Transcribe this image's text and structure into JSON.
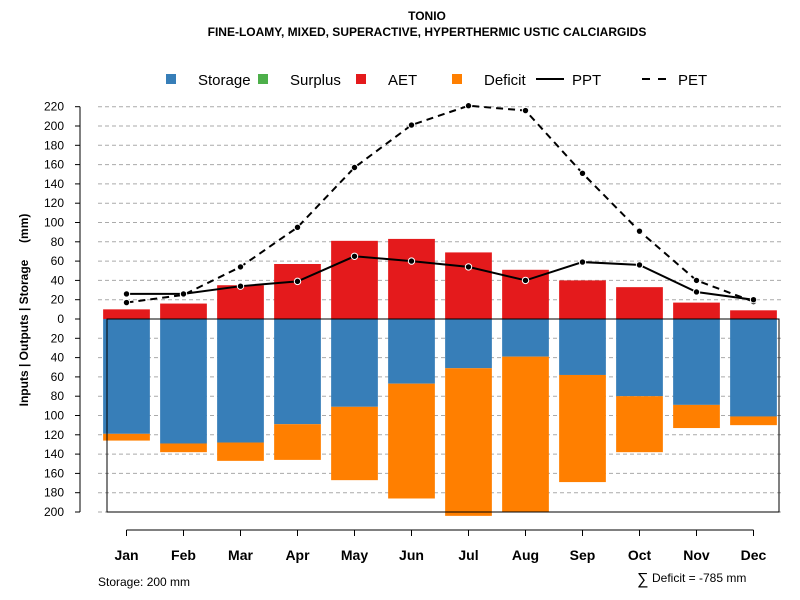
{
  "chart_data": {
    "type": "bar",
    "title": "TONIO",
    "subtitle": "FINE-LOAMY, MIXED, SUPERACTIVE, HYPERTHERMIC USTIC CALCIARGIDS",
    "ylabel": "Inputs | Outputs | Storage     (mm)",
    "xlabel": "",
    "categories": [
      "Jan",
      "Feb",
      "Mar",
      "Apr",
      "May",
      "Jun",
      "Jul",
      "Aug",
      "Sep",
      "Oct",
      "Nov",
      "Dec"
    ],
    "ylim_up": [
      0,
      225
    ],
    "ylim_down": [
      0,
      200
    ],
    "yticks_up": [
      0,
      20,
      40,
      60,
      80,
      100,
      120,
      140,
      160,
      180,
      200,
      220
    ],
    "yticks_down": [
      20,
      40,
      60,
      80,
      100,
      120,
      140,
      160,
      180,
      200
    ],
    "legend": [
      {
        "label": "Storage",
        "kind": "box",
        "color": "#377eb8"
      },
      {
        "label": "Surplus",
        "kind": "box",
        "color": "#4daf4a"
      },
      {
        "label": "AET",
        "kind": "box",
        "color": "#e41a1c"
      },
      {
        "label": "Deficit",
        "kind": "box",
        "color": "#ff7f00"
      },
      {
        "label": "PPT",
        "kind": "solid",
        "color": "#000000"
      },
      {
        "label": "PET",
        "kind": "dashed",
        "color": "#000000"
      }
    ],
    "legend_position": "top",
    "series": [
      {
        "name": "AET",
        "color": "#e41a1c",
        "values": [
          10,
          16,
          35,
          57,
          81,
          83,
          69,
          51,
          40,
          33,
          17,
          9
        ]
      },
      {
        "name": "Storage",
        "color": "#377eb8",
        "values": [
          119,
          129,
          128,
          109,
          91,
          67,
          51,
          39,
          58,
          80,
          89,
          101
        ]
      },
      {
        "name": "Deficit",
        "color": "#ff7f00",
        "values": [
          7,
          9,
          19,
          37,
          76,
          119,
          153,
          161,
          111,
          58,
          24,
          9
        ]
      },
      {
        "name": "Surplus",
        "color": "#4daf4a",
        "values": [
          0,
          0,
          0,
          0,
          0,
          0,
          0,
          0,
          0,
          0,
          0,
          0
        ]
      },
      {
        "name": "PPT",
        "color": "#000000",
        "values": [
          26,
          26,
          34,
          39,
          65,
          60,
          54,
          40,
          59,
          56,
          28,
          20
        ]
      },
      {
        "name": "PET",
        "color": "#000000",
        "values": [
          17,
          25,
          54,
          95,
          157,
          201,
          221,
          216,
          151,
          91,
          40,
          18
        ]
      }
    ],
    "footer_left": "Storage: 200 mm",
    "footer_right_symbol": "∑",
    "footer_right": "Deficit = -785 mm"
  }
}
